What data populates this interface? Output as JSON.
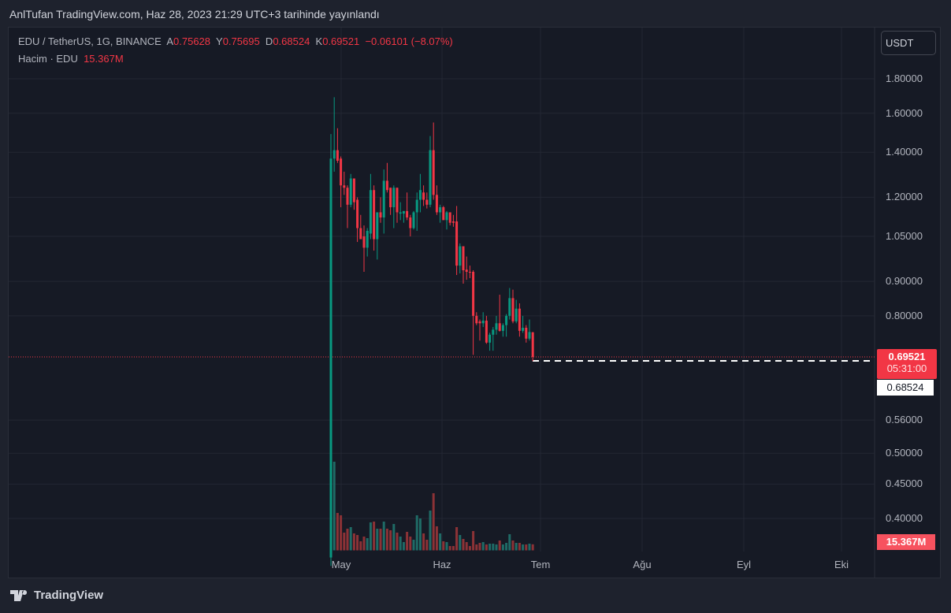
{
  "published": "AnlTufan TradingView.com, Haz 28, 2023 21:29 UTC+3 tarihinde yayınlandı",
  "legend": {
    "symbol": "EDU / TetherUS, 1G, BINANCE",
    "open_label": "A",
    "open": "0.75628",
    "high_label": "Y",
    "high": "0.75695",
    "low_label": "D",
    "low": "0.68524",
    "close_label": "K",
    "close": "0.69521",
    "change": "−0.06101 (−8.07%)",
    "volume_label": "Hacim · EDU",
    "volume": "15.367M"
  },
  "currency": "USDT",
  "last_price": "0.69521",
  "countdown": "05:31:00",
  "low_marker": "0.68524",
  "volume_marker": "15.367M",
  "brand": "TradingView",
  "colors": {
    "up": "#089981",
    "down": "#f23645",
    "vol_up": "#1f6b66",
    "vol_down": "#8c3236",
    "bg": "#161a25"
  },
  "chart_data": {
    "type": "candlestick",
    "scale": "log",
    "ylim": [
      0.34,
      1.8
    ],
    "yticks": [
      "1.80000",
      "1.60000",
      "1.40000",
      "1.20000",
      "1.05000",
      "0.90000",
      "0.80000",
      "0.56000",
      "0.50000",
      "0.45000",
      "0.40000"
    ],
    "xticks": [
      "May",
      "Haz",
      "Tem",
      "Ağu",
      "Eyl",
      "Eki"
    ],
    "ohlc": [
      [
        0.35,
        1.49,
        0.34,
        1.37
      ],
      [
        1.37,
        1.69,
        1.31,
        1.41
      ],
      [
        1.41,
        1.52,
        1.35,
        1.36
      ],
      [
        1.37,
        1.38,
        1.16,
        1.25
      ],
      [
        1.25,
        1.31,
        1.21,
        1.24
      ],
      [
        1.24,
        1.25,
        1.08,
        1.17
      ],
      [
        1.17,
        1.3,
        1.16,
        1.28
      ],
      [
        1.28,
        1.28,
        1.15,
        1.18
      ],
      [
        1.19,
        1.2,
        1.03,
        1.08
      ],
      [
        1.08,
        1.13,
        1.04,
        1.04
      ],
      [
        1.05,
        1.09,
        0.93,
        1.01
      ],
      [
        1.01,
        1.08,
        0.98,
        1.07
      ],
      [
        1.06,
        1.3,
        1.04,
        1.23
      ],
      [
        1.23,
        1.25,
        1.0,
        1.04
      ],
      [
        1.04,
        1.14,
        0.97,
        1.14
      ],
      [
        1.14,
        1.2,
        1.1,
        1.12
      ],
      [
        1.12,
        1.32,
        1.06,
        1.27
      ],
      [
        1.27,
        1.35,
        1.22,
        1.23
      ],
      [
        1.24,
        1.24,
        1.13,
        1.16
      ],
      [
        1.16,
        1.25,
        1.08,
        1.24
      ],
      [
        1.24,
        1.24,
        1.1,
        1.14
      ],
      [
        1.135,
        1.18,
        1.11,
        1.14
      ],
      [
        1.135,
        1.145,
        1.1,
        1.145
      ],
      [
        1.145,
        1.22,
        1.11,
        1.12
      ],
      [
        1.12,
        1.13,
        1.05,
        1.08
      ],
      [
        1.08,
        1.145,
        1.075,
        1.14
      ],
      [
        1.14,
        1.22,
        1.07,
        1.19
      ],
      [
        1.19,
        1.3,
        1.14,
        1.23
      ],
      [
        1.22,
        1.25,
        1.165,
        1.19
      ],
      [
        1.19,
        1.22,
        1.155,
        1.17
      ],
      [
        1.17,
        1.48,
        1.16,
        1.41
      ],
      [
        1.41,
        1.55,
        1.19,
        1.21
      ],
      [
        1.21,
        1.25,
        1.13,
        1.14
      ],
      [
        1.14,
        1.17,
        1.1,
        1.16
      ],
      [
        1.16,
        1.165,
        1.11,
        1.11
      ],
      [
        1.11,
        1.145,
        1.075,
        1.14
      ],
      [
        1.14,
        1.14,
        1.09,
        1.1
      ],
      [
        1.105,
        1.13,
        1.085,
        1.1
      ],
      [
        1.105,
        1.165,
        0.92,
        0.95
      ],
      [
        0.95,
        1.025,
        0.925,
        1.015
      ],
      [
        1.015,
        1.015,
        0.893,
        0.935
      ],
      [
        0.937,
        0.98,
        0.905,
        0.93
      ],
      [
        0.93,
        0.95,
        0.91,
        0.928
      ],
      [
        0.93,
        0.935,
        0.7,
        0.8
      ],
      [
        0.8,
        0.81,
        0.775,
        0.78
      ],
      [
        0.785,
        0.79,
        0.735,
        0.78
      ],
      [
        0.78,
        0.81,
        0.77,
        0.787
      ],
      [
        0.787,
        0.8,
        0.727,
        0.73
      ],
      [
        0.73,
        0.755,
        0.71,
        0.75
      ],
      [
        0.75,
        0.77,
        0.71,
        0.763
      ],
      [
        0.763,
        0.8,
        0.75,
        0.78
      ],
      [
        0.78,
        0.86,
        0.758,
        0.76
      ],
      [
        0.76,
        0.78,
        0.745,
        0.775
      ],
      [
        0.775,
        0.805,
        0.745,
        0.8
      ],
      [
        0.8,
        0.88,
        0.79,
        0.85
      ],
      [
        0.85,
        0.875,
        0.78,
        0.785
      ],
      [
        0.785,
        0.845,
        0.78,
        0.82
      ],
      [
        0.82,
        0.835,
        0.745,
        0.76
      ],
      [
        0.76,
        0.8,
        0.755,
        0.768
      ],
      [
        0.768,
        0.775,
        0.73,
        0.74
      ],
      [
        0.74,
        0.79,
        0.735,
        0.757
      ],
      [
        0.75628,
        0.75695,
        0.68524,
        0.69521
      ]
    ],
    "volume_millions": [
      240,
      225,
      95,
      89,
      45,
      55,
      59,
      43,
      39,
      23,
      35,
      31,
      71,
      73,
      55,
      55,
      73,
      55,
      51,
      67,
      45,
      35,
      21,
      47,
      35,
      27,
      89,
      81,
      43,
      27,
      101,
      145,
      61,
      43,
      23,
      21,
      11,
      11,
      59,
      39,
      29,
      21,
      11,
      49,
      15,
      19,
      21,
      15,
      17,
      17,
      15,
      25,
      15,
      19,
      41,
      25,
      19,
      19,
      15,
      15,
      17,
      15.367
    ]
  }
}
